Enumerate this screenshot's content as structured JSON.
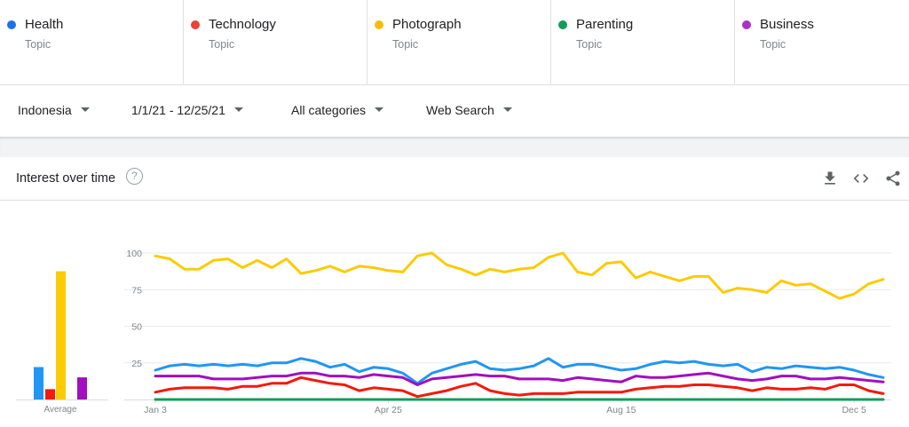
{
  "terms": [
    {
      "name": "Health",
      "kind": "Topic",
      "color": "#1a73e8"
    },
    {
      "name": "Technology",
      "kind": "Topic",
      "color": "#ea4335"
    },
    {
      "name": "Photograph",
      "kind": "Topic",
      "color": "#fbbc04"
    },
    {
      "name": "Parenting",
      "kind": "Topic",
      "color": "#0f9d58"
    },
    {
      "name": "Business",
      "kind": "Topic",
      "color": "#ab30c4"
    }
  ],
  "filters": {
    "region": "Indonesia",
    "date_range": "1/1/21 - 12/25/21",
    "category": "All categories",
    "search_type": "Web Search"
  },
  "card": {
    "title": "Interest over time",
    "help": "?",
    "icons": [
      "download-icon",
      "embed-code-icon",
      "share-icon"
    ]
  },
  "chart_data": [
    {
      "type": "bar",
      "xlabel": "Average",
      "categories": [
        "Health",
        "Technology",
        "Photograph",
        "Parenting",
        "Business"
      ],
      "values": [
        22,
        7,
        87,
        0,
        15
      ],
      "colors": [
        "#2196f3",
        "#f4190d",
        "#fbcb06",
        "#0f9d58",
        "#a10fbf"
      ],
      "ylim": [
        0,
        100
      ]
    },
    {
      "type": "line",
      "ylim": [
        0,
        100
      ],
      "yticks": [
        "100",
        "75",
        "50",
        "25"
      ],
      "ytick_values": [
        100,
        75,
        50,
        25
      ],
      "xticks": [
        "Jan 3",
        "Apr 25",
        "Aug 15",
        "Dec 5"
      ],
      "xtick_index": [
        0,
        16,
        32,
        48
      ],
      "grid": true,
      "series": [
        {
          "name": "Photograph",
          "color": "#fbcb06",
          "values": [
            98,
            96,
            89,
            89,
            95,
            96,
            90,
            95,
            90,
            96,
            86,
            88,
            91,
            87,
            91,
            90,
            88,
            87,
            98,
            100,
            92,
            89,
            85,
            89,
            87,
            89,
            90,
            97,
            100,
            87,
            85,
            93,
            94,
            83,
            87,
            84,
            81,
            84,
            84,
            73,
            76,
            75,
            73,
            81,
            78,
            79,
            74,
            69,
            72,
            79,
            82
          ]
        },
        {
          "name": "Health",
          "color": "#2196f3",
          "values": [
            20,
            23,
            24,
            23,
            24,
            23,
            24,
            23,
            25,
            25,
            28,
            26,
            22,
            24,
            19,
            22,
            21,
            18,
            11,
            18,
            21,
            24,
            26,
            21,
            20,
            21,
            23,
            28,
            22,
            24,
            24,
            22,
            20,
            21,
            24,
            26,
            25,
            26,
            24,
            23,
            24,
            19,
            22,
            21,
            23,
            22,
            21,
            22,
            20,
            17,
            15
          ]
        },
        {
          "name": "Business",
          "color": "#a10fbf",
          "values": [
            16,
            16,
            16,
            16,
            14,
            14,
            14,
            15,
            16,
            16,
            18,
            18,
            16,
            16,
            15,
            17,
            16,
            15,
            10,
            14,
            15,
            16,
            17,
            16,
            16,
            14,
            14,
            14,
            13,
            15,
            14,
            13,
            12,
            16,
            15,
            15,
            16,
            17,
            18,
            16,
            14,
            13,
            14,
            16,
            16,
            14,
            14,
            15,
            14,
            13,
            12
          ]
        },
        {
          "name": "Technology",
          "color": "#f4190d",
          "values": [
            5,
            7,
            8,
            8,
            8,
            7,
            9,
            9,
            11,
            11,
            15,
            13,
            11,
            10,
            6,
            8,
            7,
            6,
            2,
            4,
            6,
            9,
            11,
            6,
            4,
            3,
            4,
            4,
            4,
            5,
            5,
            5,
            5,
            7,
            8,
            9,
            9,
            10,
            10,
            9,
            8,
            6,
            8,
            7,
            7,
            8,
            7,
            10,
            10,
            6,
            4
          ]
        },
        {
          "name": "Parenting",
          "color": "#0f9d58",
          "values": [
            0,
            0,
            0,
            0,
            0,
            0,
            0,
            0,
            0,
            0,
            0,
            0,
            0,
            0,
            0,
            0,
            0,
            0,
            0,
            0,
            0,
            0,
            0,
            0,
            0,
            0,
            0,
            0,
            0,
            0,
            0,
            0,
            0,
            0,
            0,
            0,
            0,
            0,
            0,
            0,
            0,
            0,
            0,
            0,
            0,
            0,
            0,
            0,
            0,
            0,
            0
          ]
        }
      ]
    }
  ]
}
